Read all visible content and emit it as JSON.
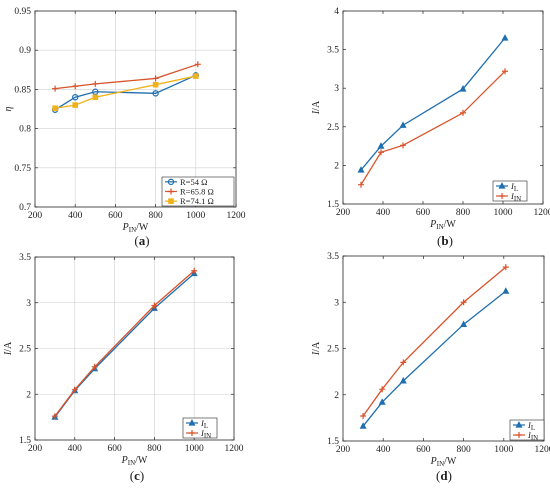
{
  "colors": {
    "blue": "#1f6fb0",
    "red": "#d9532a",
    "yellow": "#f0b21a",
    "axis": "#262626",
    "grid": "#d0d0d0"
  },
  "chart_data": [
    {
      "id": "a",
      "type": "line",
      "panel_label": "a",
      "xlabel": {
        "main": "P",
        "sub": "IN",
        "unit": "/W"
      },
      "ylabel": {
        "main": "η",
        "sub": "",
        "unit": ""
      },
      "xlim": [
        200,
        1200
      ],
      "ylim": [
        0.7,
        0.95
      ],
      "xticks": [
        200,
        400,
        600,
        800,
        1000,
        1200
      ],
      "yticks": [
        0.7,
        0.75,
        0.8,
        0.85,
        0.9,
        0.95
      ],
      "xtick_labels": [
        "200",
        "400",
        "600",
        "800",
        "1000",
        "1200"
      ],
      "ytick_labels": [
        "0.7",
        "0.75",
        "0.8",
        "0.85",
        "0.9",
        "0.95"
      ],
      "grid": true,
      "legend_position": "bottom-right",
      "series": [
        {
          "name": "R=54 Ω",
          "color": "#1f6fb0",
          "marker": "circle",
          "x": [
            300,
            400,
            500,
            800,
            1000
          ],
          "y": [
            0.824,
            0.84,
            0.847,
            0.845,
            0.868
          ]
        },
        {
          "name": "R=65.8 Ω",
          "color": "#d9532a",
          "marker": "plus",
          "x": [
            300,
            400,
            500,
            800,
            1010
          ],
          "y": [
            0.851,
            0.854,
            0.857,
            0.864,
            0.882
          ]
        },
        {
          "name": "R=74.1 Ω",
          "color": "#f0b21a",
          "marker": "square",
          "x": [
            300,
            400,
            500,
            800,
            1000
          ],
          "y": [
            0.826,
            0.83,
            0.84,
            0.856,
            0.867
          ]
        }
      ]
    },
    {
      "id": "b",
      "type": "line",
      "panel_label": "b",
      "xlabel": {
        "main": "P",
        "sub": "IN",
        "unit": "/W"
      },
      "ylabel": {
        "main": "I",
        "sub": "",
        "unit": "/A"
      },
      "xlim": [
        200,
        1200
      ],
      "ylim": [
        1.5,
        4
      ],
      "xticks": [
        200,
        400,
        600,
        800,
        1000,
        1200
      ],
      "yticks": [
        1.5,
        2,
        2.5,
        3,
        3.5,
        4
      ],
      "xtick_labels": [
        "200",
        "400",
        "600",
        "800",
        "1000",
        "1200"
      ],
      "ytick_labels": [
        "1.5",
        "2",
        "2.5",
        "3",
        "3.5",
        "4"
      ],
      "grid": false,
      "legend_position": "bottom-right",
      "series": [
        {
          "name_main": "I",
          "name_sub": "L",
          "color": "#1f6fb0",
          "marker": "triangle",
          "x": [
            290,
            390,
            500,
            800,
            1010
          ],
          "y": [
            1.94,
            2.25,
            2.52,
            2.99,
            3.65
          ]
        },
        {
          "name_main": "I",
          "name_sub": "IN",
          "color": "#d9532a",
          "marker": "plus",
          "x": [
            290,
            390,
            500,
            800,
            1010
          ],
          "y": [
            1.75,
            2.17,
            2.26,
            2.68,
            3.22
          ]
        }
      ]
    },
    {
      "id": "c",
      "type": "line",
      "panel_label": "c",
      "xlabel": {
        "main": "P",
        "sub": "IN",
        "unit": "/W"
      },
      "ylabel": {
        "main": "I",
        "sub": "",
        "unit": "/A"
      },
      "xlim": [
        200,
        1200
      ],
      "ylim": [
        1.5,
        3.5
      ],
      "xticks": [
        200,
        400,
        600,
        800,
        1000,
        1200
      ],
      "yticks": [
        1.5,
        2,
        2.5,
        3,
        3.5
      ],
      "xtick_labels": [
        "200",
        "400",
        "600",
        "800",
        "1000",
        "1200"
      ],
      "ytick_labels": [
        "1.5",
        "2",
        "2.5",
        "3",
        "3.5"
      ],
      "grid": true,
      "legend_position": "bottom-right",
      "series": [
        {
          "name_main": "I",
          "name_sub": "L",
          "color": "#1f6fb0",
          "marker": "triangle",
          "x": [
            300,
            400,
            500,
            800,
            1000
          ],
          "y": [
            1.75,
            2.04,
            2.28,
            2.94,
            3.32
          ]
        },
        {
          "name_main": "I",
          "name_sub": "IN",
          "color": "#d9532a",
          "marker": "plus",
          "x": [
            300,
            400,
            500,
            800,
            1000
          ],
          "y": [
            1.76,
            2.05,
            2.3,
            2.97,
            3.35
          ]
        }
      ]
    },
    {
      "id": "d",
      "type": "line",
      "panel_label": "d",
      "xlabel": {
        "main": "P",
        "sub": "IN",
        "unit": "/W"
      },
      "ylabel": {
        "main": "I",
        "sub": "",
        "unit": "/A"
      },
      "xlim": [
        200,
        1200
      ],
      "ylim": [
        1.5,
        3.5
      ],
      "xticks": [
        200,
        400,
        600,
        800,
        1000,
        1200
      ],
      "yticks": [
        1.5,
        2,
        2.5,
        3,
        3.5
      ],
      "xtick_labels": [
        "200",
        "400",
        "600",
        "800",
        "1000",
        "1200"
      ],
      "ytick_labels": [
        "1.5",
        "2",
        "2.5",
        "3",
        "3.5"
      ],
      "grid": false,
      "legend_position": "bottom-right",
      "series": [
        {
          "name_main": "I",
          "name_sub": "L",
          "color": "#1f6fb0",
          "marker": "triangle",
          "x": [
            300,
            395,
            500,
            800,
            1010
          ],
          "y": [
            1.66,
            1.92,
            2.15,
            2.76,
            3.12
          ]
        },
        {
          "name_main": "I",
          "name_sub": "IN",
          "color": "#d9532a",
          "marker": "plus",
          "x": [
            300,
            395,
            500,
            800,
            1010
          ],
          "y": [
            1.77,
            2.06,
            2.35,
            3.0,
            3.38
          ]
        }
      ]
    }
  ]
}
